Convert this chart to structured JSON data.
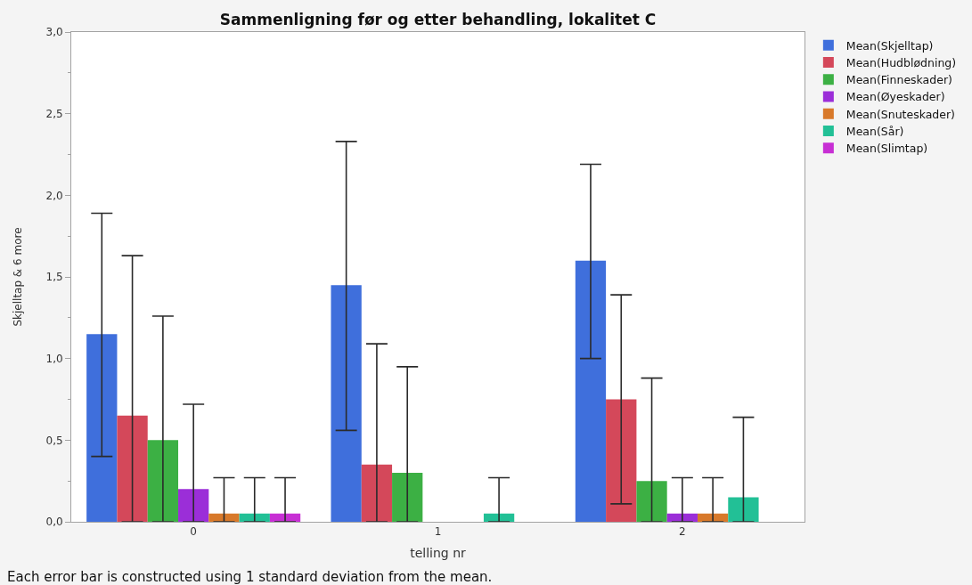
{
  "chart_data": {
    "type": "bar",
    "title": "Sammenligning før og etter behandling, lokalitet C",
    "xlabel": "telling nr",
    "ylabel": "Skjelltap & 6 more",
    "annotations": [
      "Each error bar is constructed using 1 standard deviation from the mean."
    ],
    "categories": [
      "0",
      "1",
      "2"
    ],
    "series": [
      {
        "name": "Mean(Skjelltap)",
        "color": "#3f6fdc",
        "values": [
          1.15,
          1.45,
          1.6
        ],
        "errors": [
          [
            0.4,
            1.89
          ],
          [
            0.56,
            2.33
          ],
          [
            1.0,
            2.19
          ]
        ]
      },
      {
        "name": "Mean(Hudblødning)",
        "color": "#d4485a",
        "values": [
          0.65,
          0.35,
          0.75
        ],
        "errors": [
          [
            0,
            1.63
          ],
          [
            0,
            1.09
          ],
          [
            0.11,
            1.39
          ]
        ]
      },
      {
        "name": "Mean(Finneskader)",
        "color": "#3cb044",
        "values": [
          0.5,
          0.3,
          0.25
        ],
        "errors": [
          [
            0,
            1.26
          ],
          [
            0,
            0.95
          ],
          [
            0,
            0.88
          ]
        ]
      },
      {
        "name": "Mean(Øyeskader)",
        "color": "#9b2ed8",
        "values": [
          0.2,
          null,
          0.05
        ],
        "errors": [
          [
            0,
            0.72
          ],
          null,
          [
            0,
            0.27
          ]
        ]
      },
      {
        "name": "Mean(Snuteskader)",
        "color": "#d8792a",
        "values": [
          0.05,
          null,
          0.05
        ],
        "errors": [
          [
            0,
            0.27
          ],
          null,
          [
            0,
            0.27
          ]
        ]
      },
      {
        "name": "Mean(Sår)",
        "color": "#22c096",
        "values": [
          0.05,
          0.05,
          0.15
        ],
        "errors": [
          [
            0,
            0.27
          ],
          [
            0,
            0.27
          ],
          [
            0,
            0.64
          ]
        ]
      },
      {
        "name": "Mean(Slimtap)",
        "color": "#c72fd4",
        "values": [
          0.05,
          null,
          null
        ],
        "errors": [
          [
            0,
            0.27
          ],
          null,
          null
        ]
      }
    ],
    "ylim": [
      0,
      3
    ],
    "yticks": [
      {
        "value": 0,
        "label": "0,0"
      },
      {
        "value": 0.25,
        "label": null
      },
      {
        "value": 0.5,
        "label": "0,5"
      },
      {
        "value": 0.75,
        "label": null
      },
      {
        "value": 1,
        "label": "1,0"
      },
      {
        "value": 1.25,
        "label": null
      },
      {
        "value": 1.5,
        "label": "1,5"
      },
      {
        "value": 1.75,
        "label": null
      },
      {
        "value": 2,
        "label": "2,0"
      },
      {
        "value": 2.25,
        "label": null
      },
      {
        "value": 2.5,
        "label": "2,5"
      },
      {
        "value": 2.75,
        "label": null
      },
      {
        "value": 3,
        "label": "3,0"
      }
    ],
    "legend": "top right"
  }
}
